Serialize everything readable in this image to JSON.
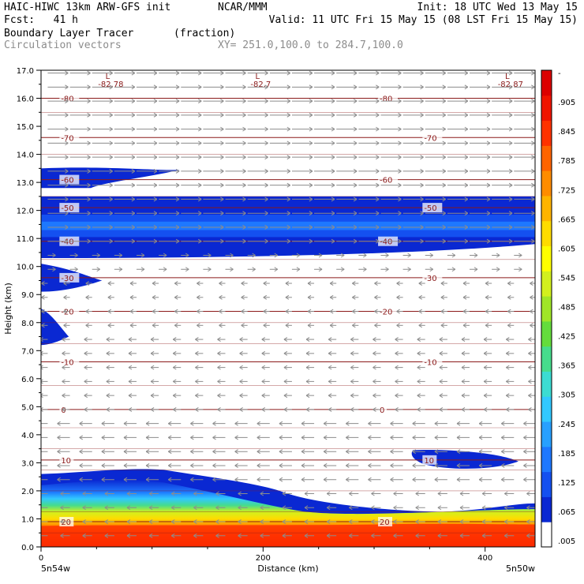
{
  "header": {
    "model": "HAIC-HIWC 13km ARW-GFS init",
    "org": "NCAR/MMM",
    "init": "Init: 18 UTC Wed 13 May 15",
    "fcst": "Fcst:   41 h",
    "valid": "Valid: 11 UTC Fri 15 May 15 (08 LST Fri 15 May 15)",
    "field": "Boundary Layer Tracer",
    "units": "(fraction)",
    "overlay": "Circulation vectors",
    "xsec": "XY= 251.0,100.0 to 284.7,100.0"
  },
  "chart_data": {
    "type": "heatmap",
    "title": "Boundary Layer Tracer",
    "units": "(fraction)",
    "xlabel": "Distance (km)",
    "ylabel": "Height (km)",
    "xlim": [
      0,
      445
    ],
    "ylim": [
      0,
      17
    ],
    "x_ticks": [
      0,
      200,
      400
    ],
    "y_ticks": [
      0.0,
      1.0,
      2.0,
      3.0,
      4.0,
      5.0,
      6.0,
      7.0,
      8.0,
      9.0,
      10.0,
      11.0,
      12.0,
      13.0,
      14.0,
      15.0,
      16.0,
      17.0
    ],
    "x_endpoints": [
      "5n54w",
      "5n50w"
    ],
    "colorbar": {
      "labels": [
        ".005",
        ".065",
        ".125",
        ".185",
        ".245",
        ".305",
        ".365",
        ".425",
        ".485",
        ".545",
        ".605",
        ".665",
        ".725",
        ".785",
        ".845",
        ".905",
        "-"
      ],
      "colors": [
        "#ffffff",
        "#0a28d2",
        "#1450f0",
        "#1e78ff",
        "#28a0ff",
        "#32c8ff",
        "#3cdcd2",
        "#46dc8c",
        "#64dc3c",
        "#a0e628",
        "#d2f01e",
        "#ffff00",
        "#ffdc00",
        "#ffb400",
        "#ff8c00",
        "#ff6400",
        "#ff3200",
        "#f01400",
        "#dc0000"
      ]
    },
    "temperature_contours": [
      {
        "label": "-80",
        "height": 16.0
      },
      {
        "label": "-70",
        "height": 14.6
      },
      {
        "label": "-60",
        "height": 13.1
      },
      {
        "label": "-50",
        "height": 12.1
      },
      {
        "label": "-40",
        "height": 10.9
      },
      {
        "label": "-30",
        "height": 9.6
      },
      {
        "label": "-20",
        "height": 8.4
      },
      {
        "label": "-10",
        "height": 6.6
      },
      {
        "label": "0",
        "height": 4.9
      },
      {
        "label": "10",
        "height": 3.1
      },
      {
        "label": "20",
        "height": 0.9
      }
    ],
    "tropopause_minima": [
      {
        "label": "L",
        "value": "-82.78",
        "x": 60
      },
      {
        "label": "L",
        "value": "-82.7",
        "x": 195
      },
      {
        "label": "L",
        "value": "-82.87",
        "x": 420
      }
    ],
    "tracer_regions": [
      {
        "name": "upper-layer",
        "bottom": 10.3,
        "top": 12.5,
        "value": 0.065
      },
      {
        "name": "upper-tongue",
        "x": [
          0,
          125
        ],
        "bottom": 12.8,
        "top": 13.5,
        "value": 0.065
      },
      {
        "name": "left-tongue-9km",
        "x": [
          0,
          55
        ],
        "bottom": 9.1,
        "top": 10.1,
        "value": 0.065
      },
      {
        "name": "left-tongue-7km",
        "x": [
          0,
          25
        ],
        "bottom": 7.2,
        "top": 8.5,
        "value": 0.065
      },
      {
        "name": "mid-blob",
        "x": [
          335,
          430
        ],
        "bottom": 2.7,
        "top": 3.5,
        "value": 0.065
      },
      {
        "name": "boundary-layer",
        "bottom": 0.0,
        "top": 2.6,
        "value": 0.905
      }
    ]
  }
}
